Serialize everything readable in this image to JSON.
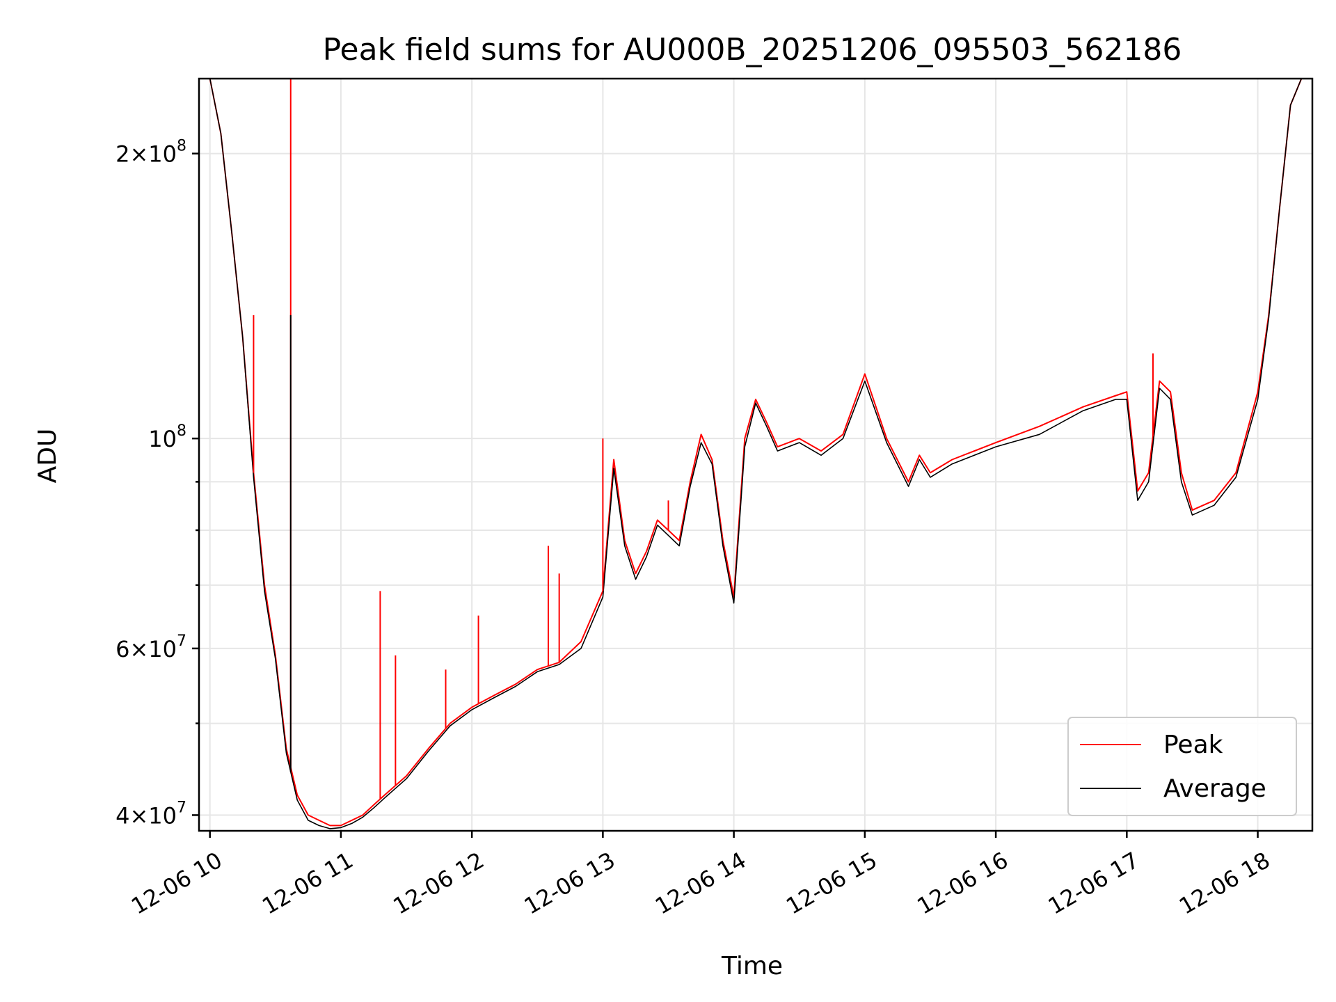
{
  "chart_data": {
    "type": "line",
    "title": "Peak field sums for AU000B_20251206_095503_562186",
    "xlabel": "Time",
    "ylabel": "ADU",
    "yscale": "log",
    "xlim": [
      "2025-12-06 09:55",
      "2025-12-06 18:25"
    ],
    "ylim": [
      38500000,
      240000000
    ],
    "x_tick_labels": [
      "12-06 10",
      "12-06 11",
      "12-06 12",
      "12-06 13",
      "12-06 14",
      "12-06 15",
      "12-06 16",
      "12-06 17",
      "12-06 18"
    ],
    "y_tick_labels": [
      {
        "value": 40000000,
        "mantissa": "4",
        "exp": "7"
      },
      {
        "value": 60000000,
        "mantissa": "6",
        "exp": "7"
      },
      {
        "value": 100000000,
        "mantissa": "",
        "exp": "8"
      },
      {
        "value": 200000000,
        "mantissa": "2",
        "exp": "8"
      }
    ],
    "grid": true,
    "legend_position": "lower-right",
    "x": [
      "09:55",
      "10:00",
      "10:05",
      "10:10",
      "10:15",
      "10:20",
      "10:25",
      "10:30",
      "10:35",
      "10:40",
      "10:45",
      "10:50",
      "10:55",
      "11:00",
      "11:05",
      "11:10",
      "11:15",
      "11:20",
      "11:30",
      "11:40",
      "11:50",
      "12:00",
      "12:10",
      "12:20",
      "12:30",
      "12:40",
      "12:50",
      "13:00",
      "13:05",
      "13:10",
      "13:15",
      "13:20",
      "13:25",
      "13:30",
      "13:35",
      "13:40",
      "13:45",
      "13:50",
      "13:55",
      "14:00",
      "14:05",
      "14:10",
      "14:15",
      "14:20",
      "14:30",
      "14:40",
      "14:50",
      "15:00",
      "15:10",
      "15:20",
      "15:25",
      "15:30",
      "15:40",
      "16:00",
      "16:20",
      "16:40",
      "16:55",
      "17:00",
      "17:05",
      "17:10",
      "17:15",
      "17:20",
      "17:25",
      "17:30",
      "17:40",
      "17:50",
      "18:00",
      "18:05",
      "18:10",
      "18:15",
      "18:20",
      "18:25"
    ],
    "series": [
      {
        "name": "Peak",
        "color": "#ff0000",
        "values": [
          240000000,
          240000000,
          210000000,
          165000000,
          128000000,
          92000000,
          70000000,
          59000000,
          47000000,
          42000000,
          40000000,
          39500000,
          39000000,
          39000000,
          39500000,
          40000000,
          41000000,
          42000000,
          44000000,
          47000000,
          50000000,
          52000000,
          53500000,
          55000000,
          57000000,
          58000000,
          61000000,
          69000000,
          95000000,
          78000000,
          72000000,
          76000000,
          82000000,
          80000000,
          78000000,
          90000000,
          101000000,
          95000000,
          78000000,
          68000000,
          100000000,
          110000000,
          104000000,
          98000000,
          100000000,
          97000000,
          101000000,
          117000000,
          100000000,
          90000000,
          96000000,
          92000000,
          95000000,
          99000000,
          103000000,
          108000000,
          111000000,
          112000000,
          88000000,
          92000000,
          115000000,
          112000000,
          92000000,
          84000000,
          86000000,
          92000000,
          112000000,
          135000000,
          175000000,
          225000000,
          240000000,
          240000000
        ]
      },
      {
        "name": "Average",
        "color": "#000000",
        "values": [
          240000000,
          240000000,
          210000000,
          165000000,
          128000000,
          91000000,
          69000000,
          58500000,
          46500000,
          41500000,
          39500000,
          39000000,
          38700000,
          38800000,
          39200000,
          39800000,
          40700000,
          41700000,
          43700000,
          46700000,
          49700000,
          51700000,
          53200000,
          54700000,
          56700000,
          57700000,
          60000000,
          68000000,
          93000000,
          77000000,
          71000000,
          75000000,
          81000000,
          79000000,
          77000000,
          89000000,
          99000000,
          94000000,
          77000000,
          67000000,
          98000000,
          109000000,
          103000000,
          97000000,
          99000000,
          96000000,
          100000000,
          115000000,
          99000000,
          89000000,
          95000000,
          91000000,
          94000000,
          98000000,
          101000000,
          107000000,
          110000000,
          110000000,
          86000000,
          90000000,
          113000000,
          110000000,
          90000000,
          83000000,
          85000000,
          91000000,
          110000000,
          134000000,
          175000000,
          225000000,
          240000000,
          240000000
        ]
      }
    ],
    "spikes": [
      {
        "series": "Peak",
        "x": "10:20",
        "y": 135000000
      },
      {
        "series": "Peak",
        "x": "10:37",
        "y": 240000000
      },
      {
        "series": "Average",
        "x": "10:37",
        "y": 135000000
      },
      {
        "series": "Peak",
        "x": "11:18",
        "y": 69000000
      },
      {
        "series": "Peak",
        "x": "11:25",
        "y": 59000000
      },
      {
        "series": "Peak",
        "x": "11:48",
        "y": 57000000
      },
      {
        "series": "Peak",
        "x": "12:03",
        "y": 65000000
      },
      {
        "series": "Peak",
        "x": "12:35",
        "y": 77000000
      },
      {
        "series": "Peak",
        "x": "12:40",
        "y": 72000000
      },
      {
        "series": "Peak",
        "x": "13:00",
        "y": 100000000
      },
      {
        "series": "Peak",
        "x": "13:30",
        "y": 86000000
      },
      {
        "series": "Peak",
        "x": "17:12",
        "y": 123000000
      }
    ]
  }
}
